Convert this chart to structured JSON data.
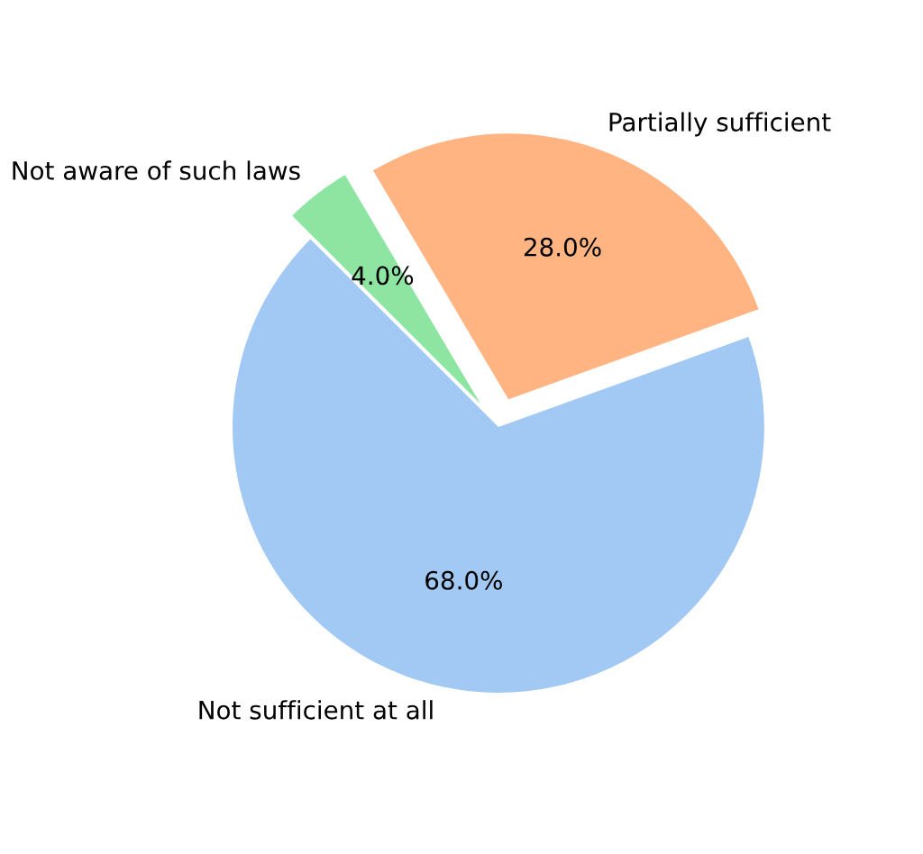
{
  "chart_data": {
    "type": "pie",
    "categories": [
      "Not sufficient at all",
      "Partially sufficient",
      "Not aware of such laws"
    ],
    "values": [
      68.0,
      28.0,
      4.0
    ],
    "colors": [
      "#a1c9f4",
      "#ffb482",
      "#8de5a1"
    ],
    "value_labels": [
      "68.0%",
      "28.0%",
      "4.0%"
    ]
  }
}
